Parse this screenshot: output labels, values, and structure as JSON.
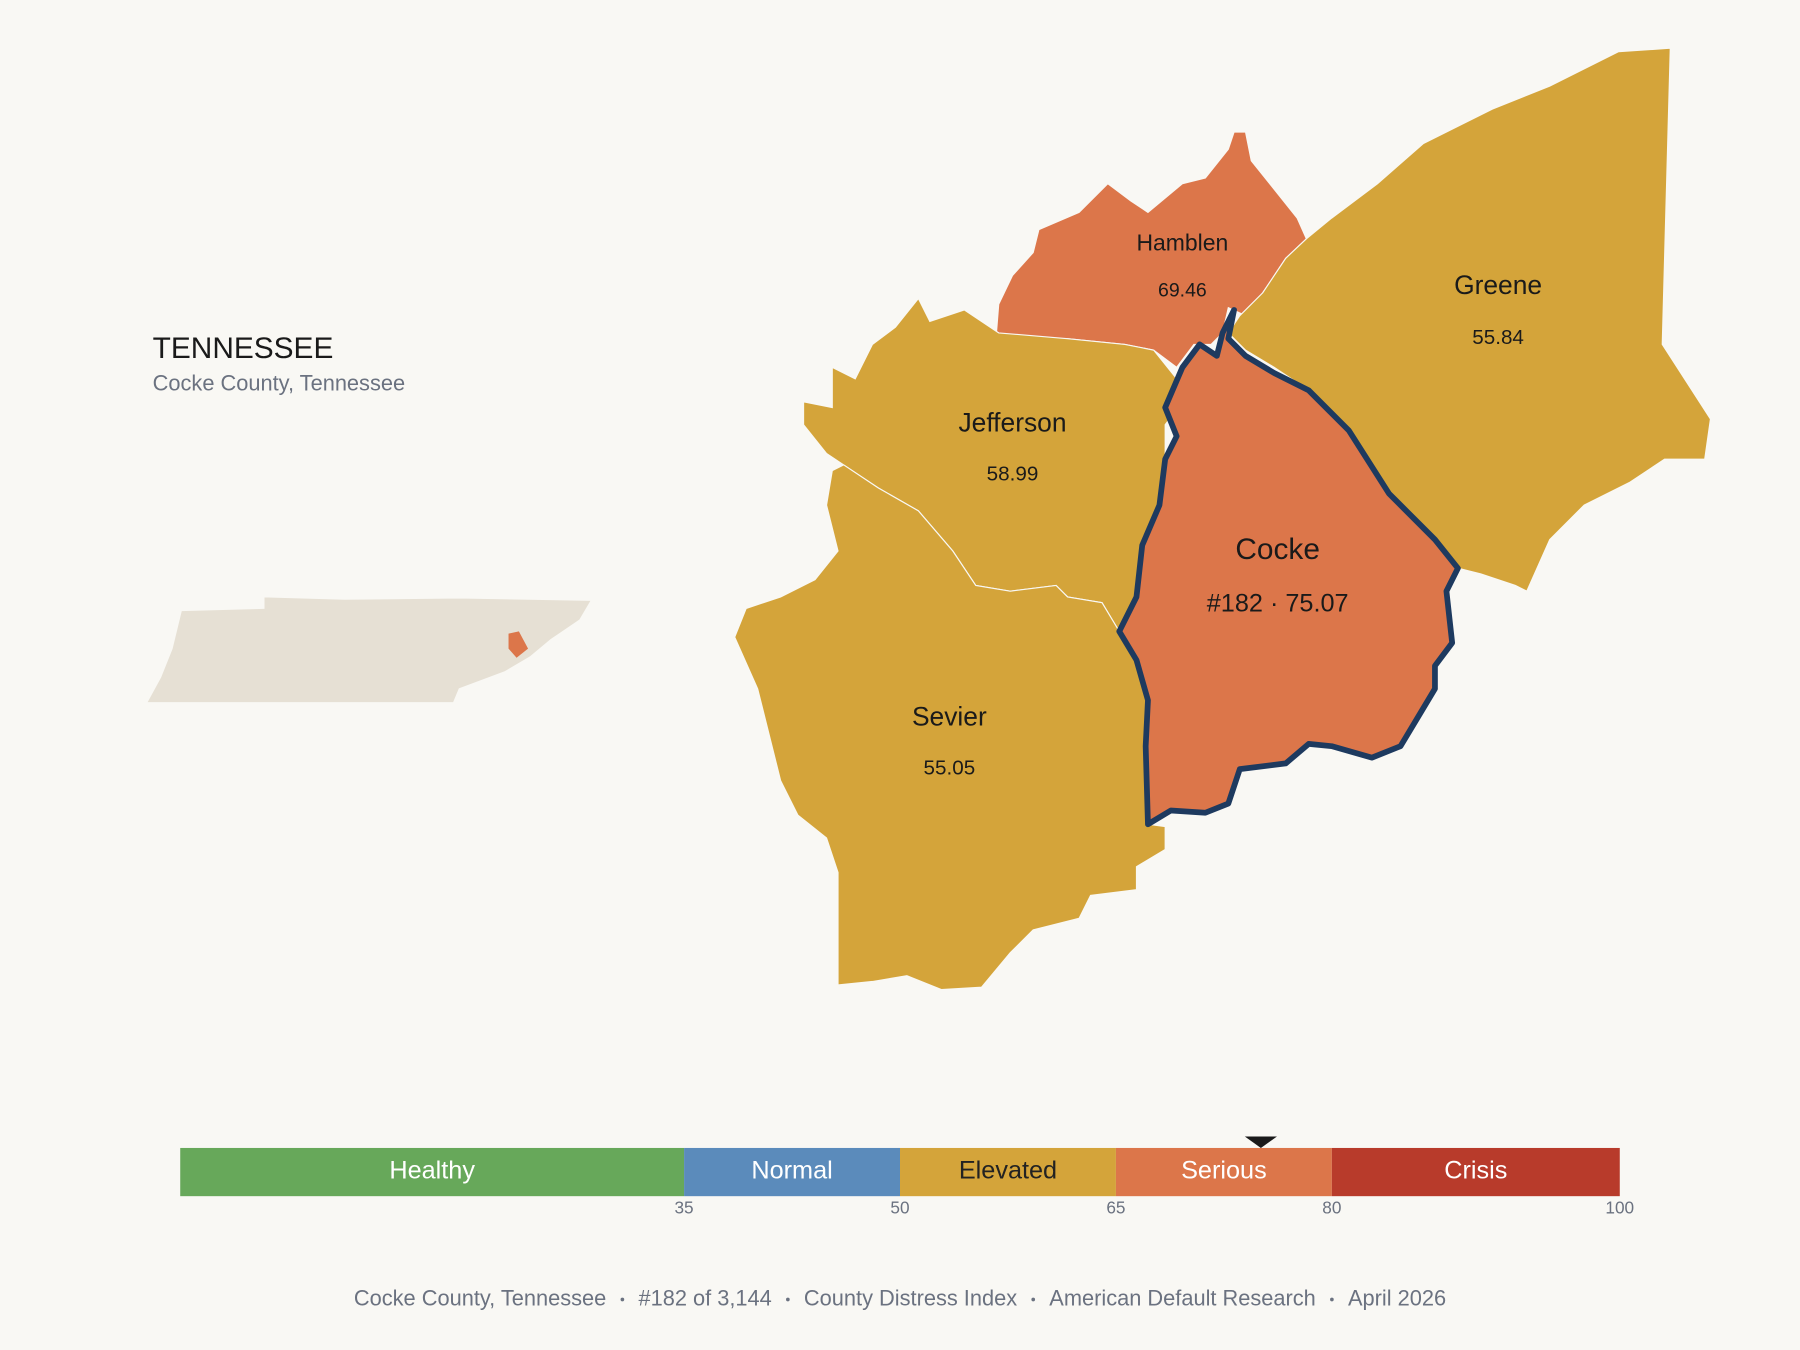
{
  "header": {
    "title": "TENNESSEE",
    "subtitle": "Cocke County, Tennessee"
  },
  "counties": [
    {
      "name": "Hamblen",
      "value": 69.46
    },
    {
      "name": "Greene",
      "value": 55.84
    },
    {
      "name": "Jefferson",
      "value": 58.99
    },
    {
      "name": "Sevier",
      "value": 55.05
    },
    {
      "name": "Cocke",
      "value": 75.07,
      "value_label": "#182 · 75.07",
      "highlight": true,
      "outline_color": "#1e3a5f"
    }
  ],
  "scale": {
    "range": [
      0,
      100
    ],
    "ticks": [
      35,
      50,
      65,
      80,
      100
    ],
    "bands": [
      {
        "label": "Healthy",
        "color": "#67a85a",
        "text_color": "#ffffff"
      },
      {
        "label": "Normal",
        "color": "#5b8bbb",
        "text_color": "#ffffff"
      },
      {
        "label": "Elevated",
        "color": "#d4a43a",
        "text_color": "#222222"
      },
      {
        "label": "Serious",
        "color": "#dc764a",
        "text_color": "#ffffff"
      },
      {
        "label": "Crisis",
        "color": "#b83b2b",
        "text_color": "#ffffff"
      }
    ]
  },
  "footer": [
    "Cocke County, Tennessee",
    "#182 of 3,144",
    "County Distress Index",
    "American Default Research",
    "April 2026"
  ]
}
